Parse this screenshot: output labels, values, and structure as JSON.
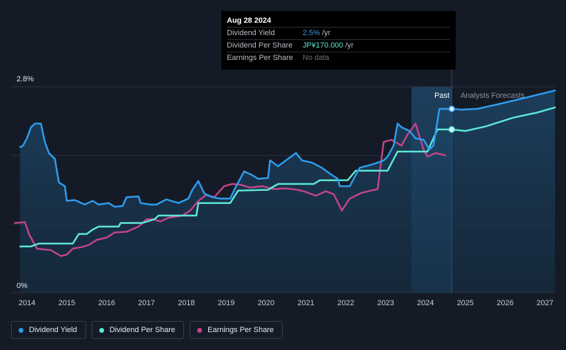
{
  "colors": {
    "background": "#151b26",
    "dividend_yield": "#2e9df0",
    "dividend_per_share": "#5ee8d8",
    "earnings_per_share": "#c2458a",
    "grid": "#2a313d",
    "past_region": "#1d3a55"
  },
  "tooltip": {
    "date": "Aug 28 2024",
    "rows": [
      {
        "label": "Dividend Yield",
        "value": "2.5%",
        "unit": "/yr"
      },
      {
        "label": "Dividend Per Share",
        "value": "JP¥170.000",
        "unit": "/yr"
      },
      {
        "label": "Earnings Per Share",
        "value": "No data",
        "unit": ""
      }
    ]
  },
  "region_labels": {
    "past": "Past",
    "forecast": "Analysts Forecasts"
  },
  "legend": [
    {
      "label": "Dividend Yield",
      "color": "#2e9df0"
    },
    {
      "label": "Dividend Per Share",
      "color": "#5ee8d8"
    },
    {
      "label": "Earnings Per Share",
      "color": "#c2458a"
    }
  ],
  "chart_data": {
    "type": "line",
    "title": "",
    "xlabel": "",
    "ylabel": "",
    "x_ticks": [
      "2014",
      "2015",
      "2016",
      "2017",
      "2018",
      "2019",
      "2020",
      "2021",
      "2022",
      "2023",
      "2024",
      "2025",
      "2026",
      "2027"
    ],
    "y_ticks": [
      "0%",
      "2.8%"
    ],
    "ylim": [
      0,
      2.8
    ],
    "xlim": [
      2013.6,
      2027.25
    ],
    "past_region_start": 2023.65,
    "current_date": 2024.66,
    "grid": true,
    "legend_position": "bottom-left",
    "series": [
      {
        "name": "Dividend Yield",
        "unit": "%",
        "points": [
          [
            2013.83,
            1.98
          ],
          [
            2013.9,
            2.0
          ],
          [
            2014.0,
            2.1
          ],
          [
            2014.1,
            2.25
          ],
          [
            2014.2,
            2.3
          ],
          [
            2014.35,
            2.3
          ],
          [
            2014.45,
            2.05
          ],
          [
            2014.55,
            1.9
          ],
          [
            2014.7,
            1.82
          ],
          [
            2014.8,
            1.5
          ],
          [
            2014.95,
            1.45
          ],
          [
            2015.0,
            1.25
          ],
          [
            2015.2,
            1.26
          ],
          [
            2015.45,
            1.2
          ],
          [
            2015.65,
            1.25
          ],
          [
            2015.8,
            1.2
          ],
          [
            2016.05,
            1.22
          ],
          [
            2016.2,
            1.17
          ],
          [
            2016.4,
            1.18
          ],
          [
            2016.5,
            1.3
          ],
          [
            2016.8,
            1.31
          ],
          [
            2016.85,
            1.22
          ],
          [
            2017.1,
            1.2
          ],
          [
            2017.25,
            1.2
          ],
          [
            2017.5,
            1.27
          ],
          [
            2017.8,
            1.22
          ],
          [
            2018.05,
            1.28
          ],
          [
            2018.15,
            1.4
          ],
          [
            2018.3,
            1.52
          ],
          [
            2018.45,
            1.35
          ],
          [
            2018.65,
            1.3
          ],
          [
            2018.85,
            1.28
          ],
          [
            2019.1,
            1.28
          ],
          [
            2019.25,
            1.45
          ],
          [
            2019.45,
            1.65
          ],
          [
            2019.65,
            1.6
          ],
          [
            2019.8,
            1.55
          ],
          [
            2020.05,
            1.56
          ],
          [
            2020.1,
            1.8
          ],
          [
            2020.3,
            1.72
          ],
          [
            2020.5,
            1.8
          ],
          [
            2020.75,
            1.9
          ],
          [
            2020.9,
            1.8
          ],
          [
            2021.15,
            1.77
          ],
          [
            2021.4,
            1.7
          ],
          [
            2021.6,
            1.62
          ],
          [
            2021.8,
            1.55
          ],
          [
            2021.85,
            1.45
          ],
          [
            2022.1,
            1.45
          ],
          [
            2022.35,
            1.7
          ],
          [
            2022.7,
            1.75
          ],
          [
            2022.95,
            1.8
          ],
          [
            2023.05,
            1.85
          ],
          [
            2023.2,
            2.0
          ],
          [
            2023.3,
            2.3
          ],
          [
            2023.4,
            2.25
          ],
          [
            2023.6,
            2.2
          ],
          [
            2023.75,
            2.1
          ],
          [
            2023.95,
            2.08
          ],
          [
            2024.1,
            1.95
          ],
          [
            2024.2,
            2.0
          ],
          [
            2024.35,
            2.5
          ],
          [
            2024.55,
            2.5
          ],
          [
            2024.66,
            2.5
          ],
          [
            2024.9,
            2.49
          ],
          [
            2025.3,
            2.5
          ],
          [
            2025.8,
            2.56
          ],
          [
            2026.5,
            2.65
          ],
          [
            2027.25,
            2.75
          ]
        ]
      },
      {
        "name": "Dividend Per Share",
        "unit": "JP¥",
        "points": [
          [
            2013.83,
            0.63
          ],
          [
            2014.1,
            0.63
          ],
          [
            2014.3,
            0.67
          ],
          [
            2015.15,
            0.67
          ],
          [
            2015.3,
            0.8
          ],
          [
            2015.5,
            0.8
          ],
          [
            2015.65,
            0.86
          ],
          [
            2015.8,
            0.9
          ],
          [
            2016.3,
            0.9
          ],
          [
            2016.35,
            0.95
          ],
          [
            2016.9,
            0.95
          ],
          [
            2017.2,
            1.0
          ],
          [
            2017.3,
            1.05
          ],
          [
            2018.25,
            1.05
          ],
          [
            2018.3,
            1.22
          ],
          [
            2019.1,
            1.22
          ],
          [
            2019.3,
            1.39
          ],
          [
            2020.05,
            1.4
          ],
          [
            2020.3,
            1.48
          ],
          [
            2021.2,
            1.48
          ],
          [
            2021.35,
            1.53
          ],
          [
            2022.05,
            1.53
          ],
          [
            2022.25,
            1.66
          ],
          [
            2022.4,
            1.66
          ],
          [
            2022.65,
            1.66
          ],
          [
            2023.05,
            1.66
          ],
          [
            2023.3,
            1.92
          ],
          [
            2024.05,
            1.92
          ],
          [
            2024.3,
            2.22
          ],
          [
            2024.66,
            2.22
          ],
          [
            2025.0,
            2.2
          ],
          [
            2025.5,
            2.26
          ],
          [
            2026.2,
            2.38
          ],
          [
            2026.8,
            2.45
          ],
          [
            2027.25,
            2.52
          ]
        ]
      },
      {
        "name": "Earnings Per Share",
        "unit": "JP¥",
        "points": [
          [
            2013.7,
            0.95
          ],
          [
            2013.95,
            0.96
          ],
          [
            2014.05,
            0.8
          ],
          [
            2014.25,
            0.6
          ],
          [
            2014.6,
            0.58
          ],
          [
            2014.85,
            0.5
          ],
          [
            2015.0,
            0.52
          ],
          [
            2015.15,
            0.6
          ],
          [
            2015.35,
            0.62
          ],
          [
            2015.55,
            0.65
          ],
          [
            2015.75,
            0.72
          ],
          [
            2016.0,
            0.75
          ],
          [
            2016.2,
            0.82
          ],
          [
            2016.5,
            0.83
          ],
          [
            2016.8,
            0.9
          ],
          [
            2017.0,
            1.0
          ],
          [
            2017.15,
            1.0
          ],
          [
            2017.35,
            0.97
          ],
          [
            2017.55,
            1.02
          ],
          [
            2017.9,
            1.05
          ],
          [
            2018.1,
            1.12
          ],
          [
            2018.3,
            1.25
          ],
          [
            2018.5,
            1.33
          ],
          [
            2018.7,
            1.3
          ],
          [
            2018.95,
            1.45
          ],
          [
            2019.15,
            1.48
          ],
          [
            2019.35,
            1.47
          ],
          [
            2019.6,
            1.43
          ],
          [
            2019.9,
            1.45
          ],
          [
            2020.2,
            1.41
          ],
          [
            2020.5,
            1.42
          ],
          [
            2020.8,
            1.4
          ],
          [
            2021.0,
            1.37
          ],
          [
            2021.25,
            1.32
          ],
          [
            2021.5,
            1.38
          ],
          [
            2021.7,
            1.34
          ],
          [
            2021.9,
            1.12
          ],
          [
            2022.1,
            1.28
          ],
          [
            2022.4,
            1.36
          ],
          [
            2022.8,
            1.41
          ],
          [
            2022.95,
            2.05
          ],
          [
            2023.15,
            2.08
          ],
          [
            2023.4,
            2.0
          ],
          [
            2023.55,
            2.15
          ],
          [
            2023.75,
            2.3
          ],
          [
            2023.95,
            1.95
          ],
          [
            2024.05,
            1.85
          ],
          [
            2024.25,
            1.9
          ],
          [
            2024.5,
            1.87
          ]
        ]
      }
    ]
  }
}
